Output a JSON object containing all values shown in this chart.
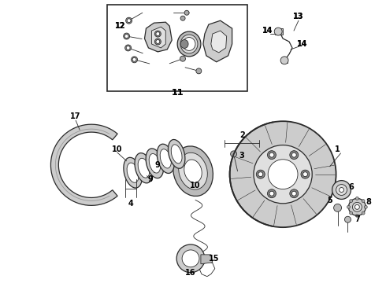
{
  "bg_color": "#ffffff",
  "line_color": "#2a2a2a",
  "label_color": "#000000",
  "fig_width": 4.9,
  "fig_height": 3.6,
  "dpi": 100,
  "lw_main": 0.9,
  "lw_thin": 0.6,
  "lw_thick": 1.3
}
